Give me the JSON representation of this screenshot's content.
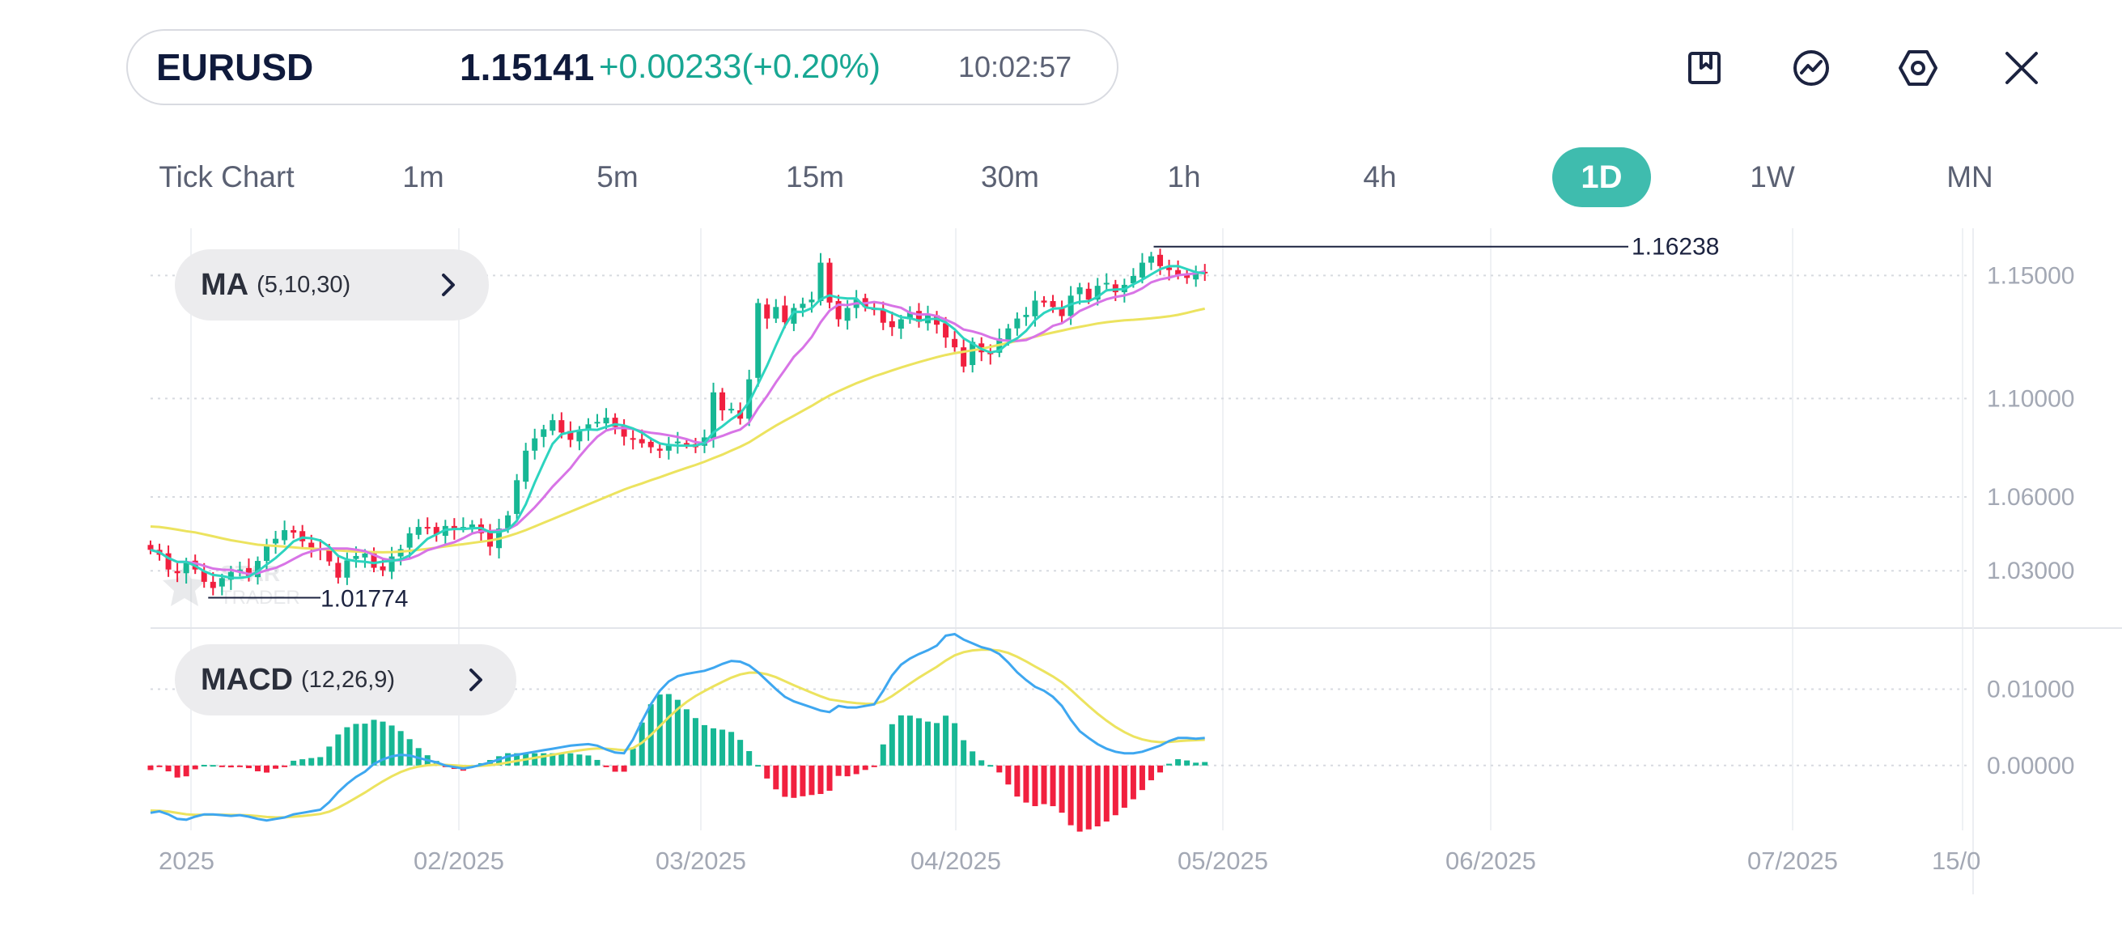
{
  "header": {
    "symbol": "EURUSD",
    "price": "1.15141",
    "change": "+0.00233(+0.20%)",
    "time": "10:02:57"
  },
  "toolbar": [
    {
      "name": "bookmark-icon"
    },
    {
      "name": "trend-icon"
    },
    {
      "name": "settings-icon"
    },
    {
      "name": "close-icon"
    }
  ],
  "timeframes": [
    "Tick Chart",
    "1m",
    "5m",
    "15m",
    "30m",
    "1h",
    "4h",
    "1D",
    "1W",
    "MN"
  ],
  "active_timeframe": "1D",
  "indicators": {
    "ma": {
      "name": "MA",
      "params": "(5,10,30)"
    },
    "macd": {
      "name": "MACD",
      "params": "(12,26,9)"
    }
  },
  "watermark": {
    "line1": "STAR",
    "line2": "TRADER"
  },
  "colors": {
    "up": "#17b794",
    "down": "#f1203f",
    "ma5": "#2dd4bf",
    "ma10": "#d874e6",
    "ma30": "#ece35f",
    "macd": "#3ea7f0",
    "signal": "#ece35f",
    "accent": "#3fbcae"
  },
  "chart_data": {
    "type": "candlestick",
    "symbol": "EURUSD",
    "timeframe": "1D",
    "x_ticks": [
      "2025",
      "02/2025",
      "03/2025",
      "04/2025",
      "05/2025",
      "06/2025",
      "07/2025",
      "15/0"
    ],
    "price_axis": {
      "ticks": [
        "1.15000",
        "1.10000",
        "1.06000",
        "1.03000"
      ],
      "ylim": [
        1.0077,
        1.1692
      ]
    },
    "macd_axis": {
      "ticks": [
        "0.01000",
        "0.00000"
      ],
      "ylim": [
        -0.0085,
        0.018
      ]
    },
    "annotations": {
      "high": "1.16238",
      "low": "1.01774"
    },
    "close": [
      1.0385,
      1.0365,
      1.0305,
      1.029,
      1.0335,
      1.0305,
      1.0255,
      1.023,
      1.027,
      1.0295,
      1.0305,
      1.028,
      1.034,
      1.0405,
      1.043,
      1.0465,
      1.0455,
      1.042,
      1.039,
      1.0385,
      1.0338,
      1.0272,
      1.0342,
      1.036,
      1.037,
      1.0312,
      1.0302,
      1.0358,
      1.0388,
      1.0452,
      1.0478,
      1.0472,
      1.0448,
      1.0482,
      1.0468,
      1.0478,
      1.0488,
      1.0452,
      1.0398,
      1.0472,
      1.0525,
      1.0668,
      1.0788,
      1.0838,
      1.0875,
      1.0912,
      1.0862,
      1.0832,
      1.087,
      1.0895,
      1.0905,
      1.0922,
      1.0885,
      1.0845,
      1.0835,
      1.0818,
      1.0802,
      1.0788,
      1.0812,
      1.0825,
      1.0815,
      1.0802,
      1.0842,
      1.1025,
      1.0952,
      1.0958,
      1.0918,
      1.1078,
      1.1388,
      1.1325,
      1.1372,
      1.131,
      1.1368,
      1.1385,
      1.1402,
      1.1552,
      1.139,
      1.1322,
      1.1368,
      1.1402,
      1.1372,
      1.1362,
      1.1308,
      1.129,
      1.1322,
      1.135,
      1.1312,
      1.1338,
      1.13,
      1.1248,
      1.1208,
      1.113,
      1.123,
      1.1188,
      1.118,
      1.1245,
      1.1285,
      1.1325,
      1.134,
      1.1398,
      1.139,
      1.1372,
      1.1335,
      1.1418,
      1.1452,
      1.1402,
      1.1458,
      1.147,
      1.1432,
      1.1462,
      1.1498,
      1.1552,
      1.1578,
      1.1538,
      1.1522,
      1.1502,
      1.149,
      1.1515,
      1.1514
    ],
    "ma30": [
      1.048,
      1.0478,
      1.0473,
      1.0467,
      1.0461,
      1.0456,
      1.0448,
      1.044,
      1.0432,
      1.0424,
      1.0418,
      1.0412,
      1.0406,
      1.0403,
      1.0401,
      1.0398,
      1.0395,
      1.0392,
      1.039,
      1.0388,
      1.0386,
      1.0383,
      1.038,
      1.0378,
      1.0377,
      1.0376,
      1.0375,
      1.0376,
      1.0378,
      1.0381,
      1.0385,
      1.0389,
      1.0394,
      1.0399,
      1.0404,
      1.0408,
      1.0413,
      1.0418,
      1.0423,
      1.043,
      1.044,
      1.0452,
      1.0465,
      1.048,
      1.0495,
      1.051,
      1.0525,
      1.054,
      1.0555,
      1.057,
      1.0585,
      1.06,
      1.0615,
      1.063,
      1.0643,
      1.0655,
      1.0668,
      1.068,
      1.0693,
      1.0706,
      1.0718,
      1.073,
      1.0743,
      1.0758,
      1.0772,
      1.0788,
      1.0804,
      1.0822,
      1.0845,
      1.0868,
      1.089,
      1.091,
      1.093,
      1.095,
      1.097,
      1.0992,
      1.1012,
      1.103,
      1.1046,
      1.1062,
      1.1076,
      1.109,
      1.1102,
      1.1114,
      1.1126,
      1.1137,
      1.1148,
      1.1158,
      1.1168,
      1.1177,
      1.1184,
      1.119,
      1.1196,
      1.1202,
      1.121,
      1.1218,
      1.1226,
      1.1234,
      1.1242,
      1.1251,
      1.126,
      1.1268,
      1.1276,
      1.1284,
      1.1291,
      1.1298,
      1.1305,
      1.131,
      1.1314,
      1.1318,
      1.132,
      1.1323,
      1.1326,
      1.133,
      1.1334,
      1.134,
      1.1348,
      1.1357,
      1.1365
    ],
    "macd": [
      -0.0062,
      -0.006,
      -0.0064,
      -0.007,
      -0.0071,
      -0.0067,
      -0.0064,
      -0.0064,
      -0.0065,
      -0.0066,
      -0.0065,
      -0.0067,
      -0.007,
      -0.0072,
      -0.007,
      -0.0068,
      -0.0064,
      -0.0062,
      -0.006,
      -0.0058,
      -0.0048,
      -0.0035,
      -0.0024,
      -0.0015,
      -0.0008,
      0.0002,
      0.0008,
      0.0012,
      0.0014,
      0.0013,
      0.001,
      0.0007,
      0.0004,
      0.0,
      -0.0002,
      -0.0004,
      -0.0002,
      0.0001,
      0.0004,
      0.0008,
      0.0012,
      0.0014,
      0.0016,
      0.0018,
      0.002,
      0.0022,
      0.0024,
      0.0026,
      0.0027,
      0.0028,
      0.0026,
      0.0021,
      0.0017,
      0.0016,
      0.0034,
      0.0058,
      0.008,
      0.0098,
      0.011,
      0.0117,
      0.012,
      0.0122,
      0.0124,
      0.0128,
      0.0133,
      0.0137,
      0.0136,
      0.0131,
      0.0122,
      0.0111,
      0.01,
      0.009,
      0.0084,
      0.008,
      0.0076,
      0.0072,
      0.007,
      0.0078,
      0.0076,
      0.0076,
      0.0078,
      0.008,
      0.0098,
      0.0118,
      0.0132,
      0.014,
      0.0146,
      0.0151,
      0.0157,
      0.017,
      0.0172,
      0.0165,
      0.016,
      0.0155,
      0.0152,
      0.0146,
      0.0135,
      0.0122,
      0.0112,
      0.0103,
      0.0098,
      0.009,
      0.0078,
      0.006,
      0.0045,
      0.0036,
      0.0028,
      0.0022,
      0.0018,
      0.0016,
      0.0016,
      0.0018,
      0.0022,
      0.0026,
      0.0032,
      0.0036,
      0.0036,
      0.0035,
      0.0036
    ]
  }
}
